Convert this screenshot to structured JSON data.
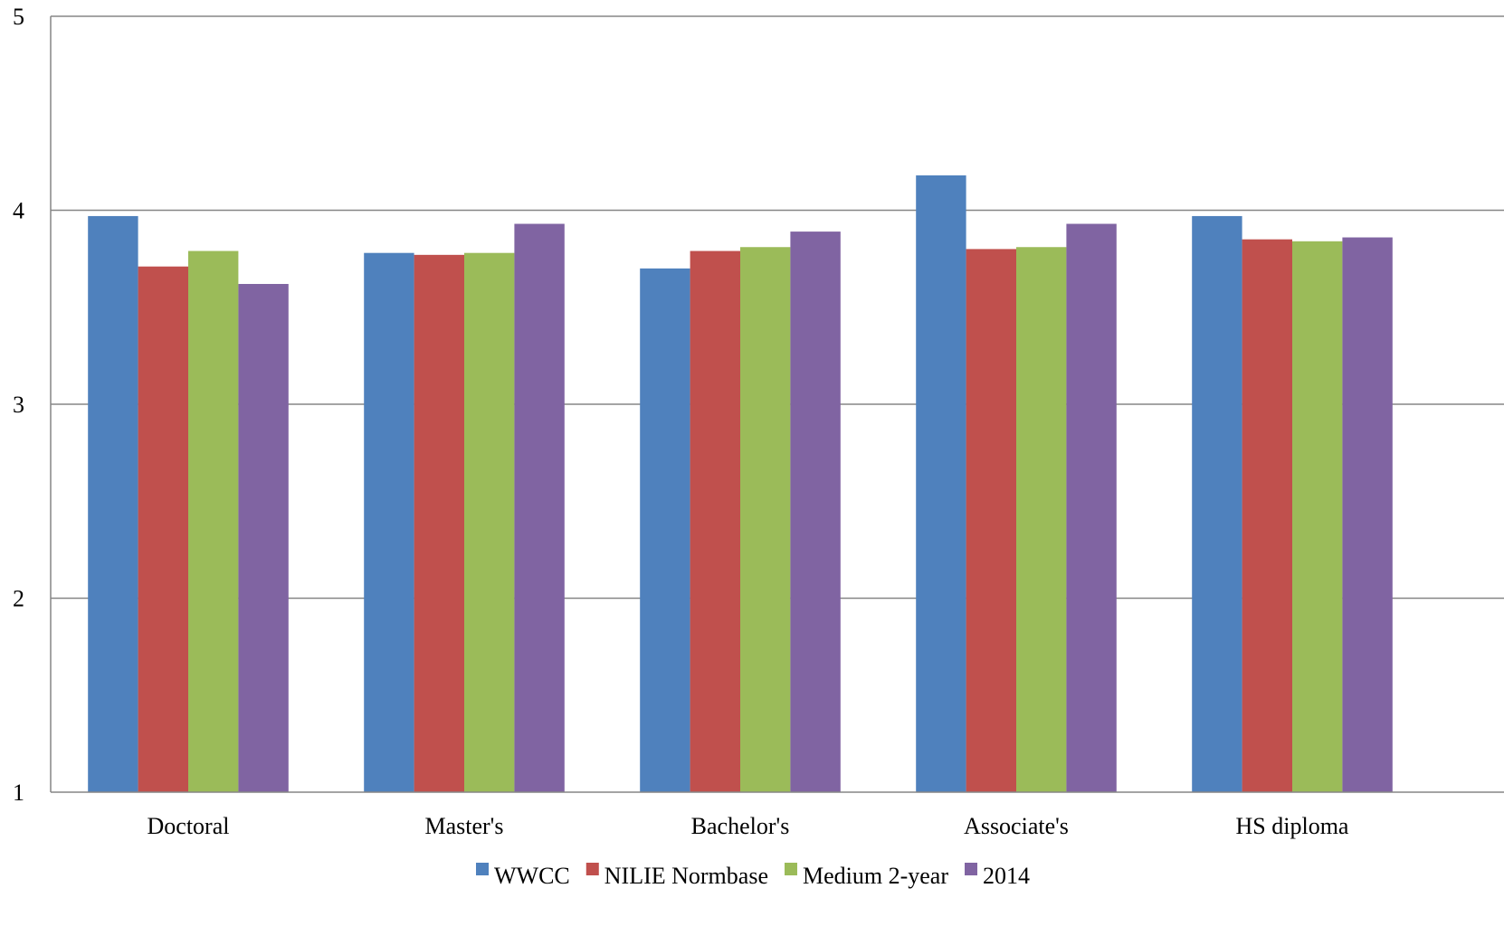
{
  "chart_data": {
    "type": "bar",
    "categories": [
      "Doctoral",
      "Master's",
      "Bachelor's",
      "Associate's",
      "HS diploma"
    ],
    "series": [
      {
        "name": "WWCC",
        "color": "#4F81BD",
        "values": [
          3.97,
          3.78,
          3.7,
          4.18,
          3.97
        ]
      },
      {
        "name": "NILIE Normbase",
        "color": "#C0504D",
        "values": [
          3.71,
          3.77,
          3.79,
          3.8,
          3.85
        ]
      },
      {
        "name": "Medium 2-year",
        "color": "#9BBB59",
        "values": [
          3.79,
          3.78,
          3.81,
          3.81,
          3.84
        ]
      },
      {
        "name": "2014",
        "color": "#8064A2",
        "values": [
          3.62,
          3.93,
          3.89,
          3.93,
          3.86
        ]
      }
    ],
    "ylim": [
      1,
      5
    ],
    "yticks": [
      1,
      2,
      3,
      4,
      5
    ],
    "grid": true,
    "legend": "bottom",
    "title": "",
    "xlabel": "",
    "ylabel": ""
  }
}
